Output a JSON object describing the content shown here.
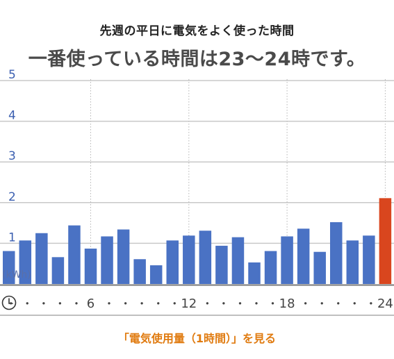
{
  "header": {
    "subtitle": "先週の平日に電気をよく使った時間",
    "headline": "一番使っている時間は23～24時です。"
  },
  "chart_data": {
    "type": "bar",
    "unit_label": "(kWh)",
    "ylim": [
      0,
      5
    ],
    "yticks": [
      {
        "value": 1,
        "label": "1"
      },
      {
        "value": 2,
        "label": "2"
      },
      {
        "value": 3,
        "label": "3"
      },
      {
        "value": 4,
        "label": "4"
      },
      {
        "value": 5,
        "label": "5"
      }
    ],
    "xticks": [
      {
        "hour": 0,
        "label": "・"
      },
      {
        "hour": 1,
        "label": "・"
      },
      {
        "hour": 2,
        "label": "・"
      },
      {
        "hour": 3,
        "label": "・"
      },
      {
        "hour": 4,
        "label": "・"
      },
      {
        "hour": 5,
        "label": "6"
      },
      {
        "hour": 6,
        "label": "・"
      },
      {
        "hour": 7,
        "label": "・"
      },
      {
        "hour": 8,
        "label": "・"
      },
      {
        "hour": 9,
        "label": "・"
      },
      {
        "hour": 10,
        "label": "・"
      },
      {
        "hour": 11,
        "label": "12"
      },
      {
        "hour": 12,
        "label": "・"
      },
      {
        "hour": 13,
        "label": "・"
      },
      {
        "hour": 14,
        "label": "・"
      },
      {
        "hour": 15,
        "label": "・"
      },
      {
        "hour": 16,
        "label": "・"
      },
      {
        "hour": 17,
        "label": "18"
      },
      {
        "hour": 18,
        "label": "・"
      },
      {
        "hour": 19,
        "label": "・"
      },
      {
        "hour": 20,
        "label": "・"
      },
      {
        "hour": 21,
        "label": "・"
      },
      {
        "hour": 22,
        "label": "・"
      },
      {
        "hour": 23,
        "label": "24"
      }
    ],
    "values": [
      0.81,
      1.07,
      1.25,
      0.66,
      1.44,
      0.87,
      1.17,
      1.34,
      0.61,
      0.46,
      1.07,
      1.19,
      1.31,
      0.94,
      1.15,
      0.53,
      0.81,
      1.17,
      1.36,
      0.79,
      1.52,
      1.07,
      1.19,
      2.11
    ],
    "highlight_index": 23,
    "vertical_guides_after_hours": [
      6,
      12,
      18,
      24
    ],
    "grid": true,
    "colors": {
      "bar": "#4a72c4",
      "highlight": "#d9461e",
      "ytick": "#3b5fb0",
      "unit": "#5a6fa8",
      "grid": "#c8c8c8",
      "axis": "#777777",
      "xtick": "#444444"
    }
  },
  "axis": {
    "clock_icon": "clock-icon"
  },
  "link": {
    "label": "「電気使用量（1時間）」を見る",
    "color": "#e07b10"
  }
}
